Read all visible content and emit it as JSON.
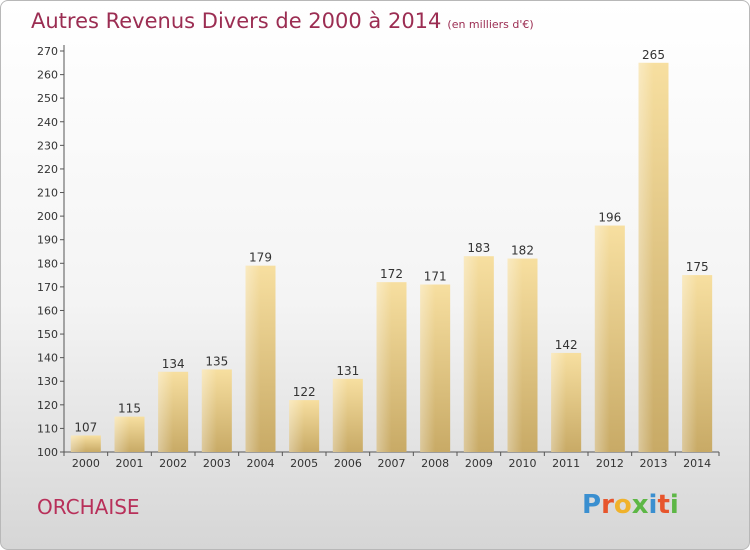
{
  "header": {
    "title": "Autres Revenus Divers de 2000 à 2014",
    "subtitle": "(en milliers d'€)"
  },
  "footer": {
    "place": "ORCHAISE",
    "logo_text": "Proxiti",
    "logo_colors": [
      "#3a8fd0",
      "#e7552c",
      "#f0b22b",
      "#5db746",
      "#3a8fd0",
      "#e7552c",
      "#5db746"
    ]
  },
  "chart_data": {
    "type": "bar",
    "title": "Autres Revenus Divers de 2000 à 2014",
    "subtitle": "(en milliers d'€)",
    "categories": [
      "2000",
      "2001",
      "2002",
      "2003",
      "2004",
      "2005",
      "2006",
      "2007",
      "2008",
      "2009",
      "2010",
      "2011",
      "2012",
      "2013",
      "2014"
    ],
    "values": [
      107,
      115,
      134,
      135,
      179,
      122,
      131,
      172,
      171,
      183,
      182,
      142,
      196,
      265,
      175
    ],
    "ylim": [
      100,
      270
    ],
    "yticks": [
      100,
      110,
      120,
      130,
      140,
      150,
      160,
      170,
      180,
      190,
      200,
      210,
      220,
      230,
      240,
      250,
      260,
      270
    ],
    "grid": false,
    "bar_color_top": "#f7dfa0",
    "bar_color_bottom": "#c8aa66"
  }
}
